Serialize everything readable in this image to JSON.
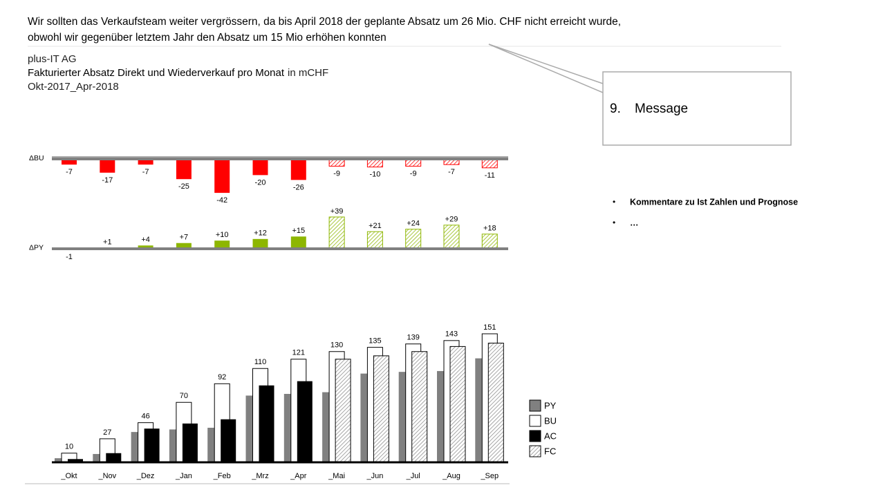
{
  "header": {
    "message_lines": [
      "Wir sollten das Verkaufsteam weiter vergrössern, da bis April 2018 der geplante Absatz um 26 Mio. CHF nicht erreicht wurde,",
      "obwohl wir gegenüber letztem Jahr den Absatz um 15 Mio erhöhen konnten"
    ],
    "company": "plus-IT AG",
    "measure": "Fakturierter Absatz Direkt und Wiederverkauf pro Monat",
    "unit": "in mCHF",
    "period": "Okt-2017_Apr-2018"
  },
  "callout": {
    "number": "9.",
    "text": "Message"
  },
  "comments": [
    "Kommentare zu Ist Zahlen und Prognose",
    "…"
  ],
  "chart_data": [
    {
      "type": "delta_bar",
      "axis_label": "ΔBU",
      "values": [
        -7,
        -17,
        -7,
        -25,
        -42,
        -20,
        -26,
        -9,
        -10,
        -9,
        -7,
        -11
      ],
      "positive_color": "#8db600",
      "negative_color": "#ff0000",
      "ylim": [
        -45,
        0
      ]
    },
    {
      "type": "delta_bar",
      "axis_label": "ΔPY",
      "values": [
        -1,
        1,
        4,
        7,
        10,
        12,
        15,
        39,
        21,
        24,
        29,
        18
      ],
      "value_labels": [
        "-1",
        "+1",
        "+4",
        "+7",
        "+10",
        "+12",
        "+15",
        "+39",
        "+21",
        "+24",
        "+29",
        "+18"
      ],
      "positive_color": "#8db600",
      "negative_color": "#ff0000",
      "ylim": [
        -3,
        40
      ]
    },
    {
      "type": "bar",
      "categories": [
        "_Okt",
        "_Nov",
        "_Dez",
        "_Jan",
        "_Feb",
        "_Mrz",
        "_Apr",
        "_Mai",
        "_Jun",
        "_Jul",
        "_Aug",
        "_Sep"
      ],
      "series": [
        {
          "name": "PY",
          "color": "#808080",
          "values": [
            4,
            9,
            35,
            38,
            40,
            78,
            80,
            82,
            104,
            106,
            107,
            122
          ]
        },
        {
          "name": "BU",
          "color": "#ffffff",
          "data_labels": true,
          "values": [
            10,
            27,
            46,
            70,
            92,
            110,
            121,
            130,
            135,
            139,
            143,
            151
          ]
        },
        {
          "name": "AC",
          "color": "#000000",
          "values": [
            3,
            10,
            39,
            45,
            50,
            90,
            95,
            null,
            null,
            null,
            null,
            null
          ]
        },
        {
          "name": "FC",
          "color": "#8a8a8a",
          "pattern": "hatch",
          "values": [
            null,
            null,
            null,
            null,
            null,
            null,
            null,
            121,
            125,
            130,
            136,
            140
          ]
        }
      ],
      "ylim": [
        0,
        160
      ]
    }
  ]
}
